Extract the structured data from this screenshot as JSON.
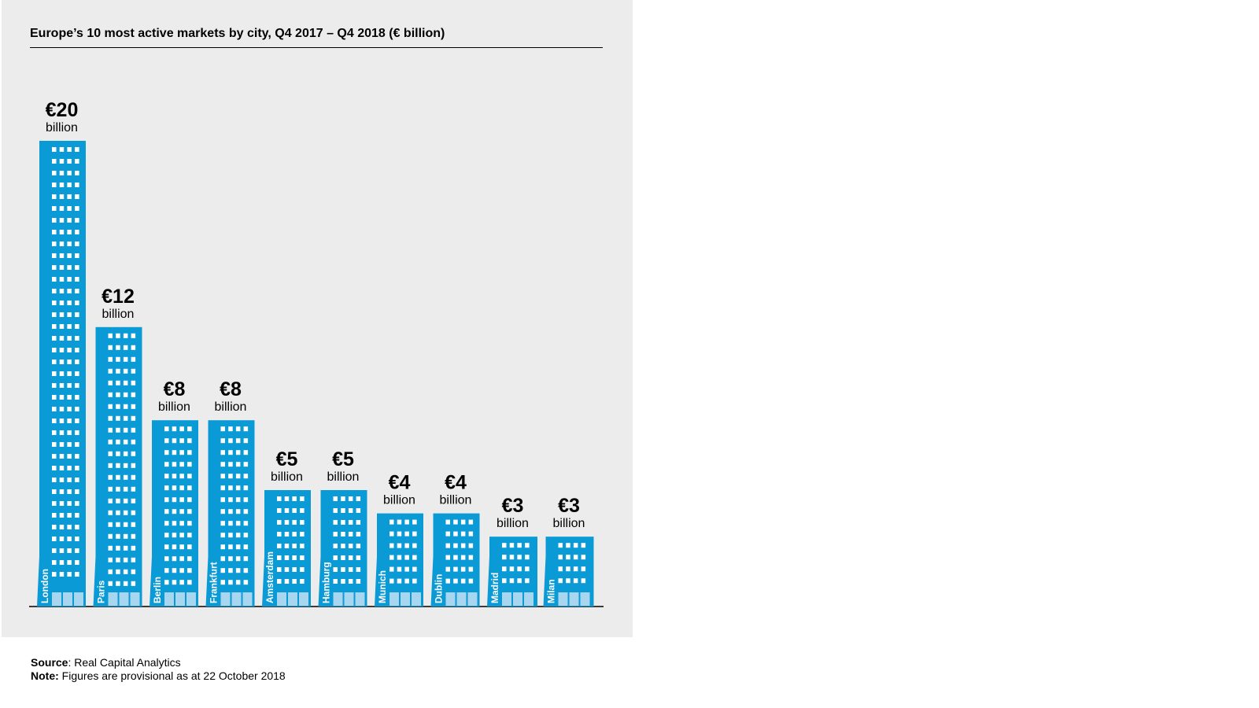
{
  "chart_data": {
    "type": "bar",
    "title": "Europe’s 10 most active markets by city, Q4 2017 – Q4 2018 (€ billion)",
    "xlabel": "",
    "ylabel": "€ billion",
    "ylim": [
      0,
      20
    ],
    "categories": [
      "London",
      "Paris",
      "Berlin",
      "Frankfurt",
      "Amsterdam",
      "Hamburg",
      "Munich",
      "Dublin",
      "Madrid",
      "Milan"
    ],
    "values": [
      20,
      12,
      8,
      8,
      5,
      5,
      4,
      4,
      3,
      3
    ],
    "value_labels": [
      "€20",
      "€12",
      "€8",
      "€8",
      "€5",
      "€5",
      "€4",
      "€4",
      "€3",
      "€3"
    ],
    "unit_label": "billion"
  },
  "colors": {
    "bar": "#0a9ad6",
    "bar_base": "#1b8fcf",
    "window": "#ffffff",
    "door": "#a9d6ef",
    "panel": "#ececec"
  },
  "footer": {
    "source_label": "Source",
    "source_text": ": Real Capital Analytics",
    "note_label": "Note:",
    "note_text": " Figures are provisional as at 22 October 2018"
  }
}
